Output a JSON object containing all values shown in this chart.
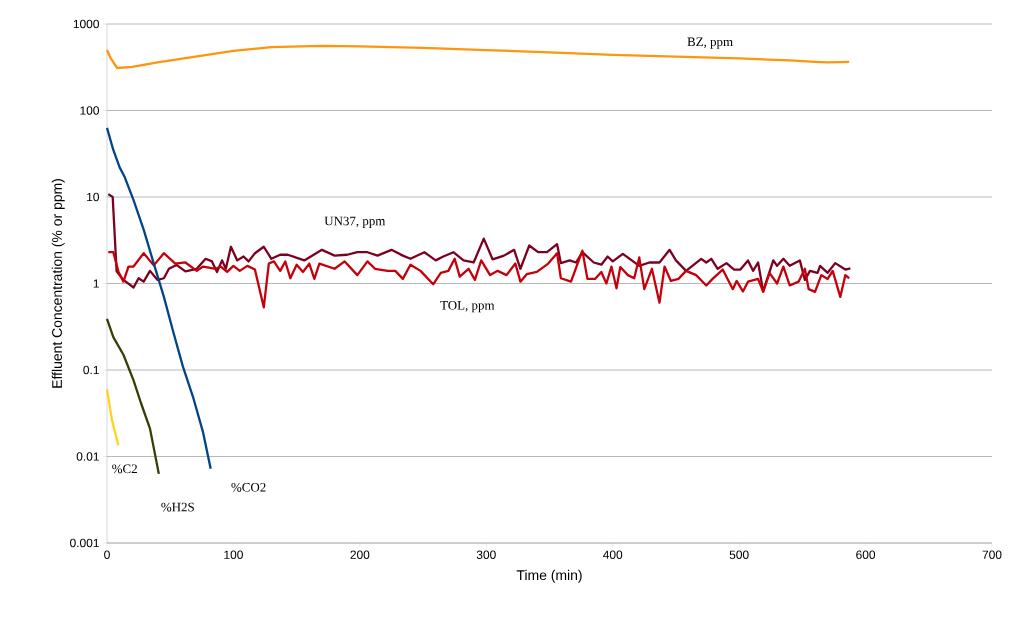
{
  "chart_data": {
    "type": "line",
    "xlabel": "Time (min)",
    "ylabel": "Effluent Concentration (% or ppm)",
    "xlim": [
      0,
      700
    ],
    "xticks": [
      0,
      100,
      200,
      300,
      400,
      500,
      600,
      700
    ],
    "ylim": [
      0.001,
      1000
    ],
    "yticks": [
      0.001,
      0.01,
      0.1,
      1,
      10,
      100,
      1000
    ],
    "log": "y",
    "grid": "y",
    "line_style": "solid",
    "series": [
      {
        "name": "BZ, ppm",
        "color": "#ff950e",
        "x": [
          0,
          3,
          8,
          20,
          40,
          70,
          100,
          130,
          170,
          200,
          250,
          300,
          350,
          400,
          450,
          500,
          540,
          560,
          570,
          587
        ],
        "values": [
          500,
          400,
          310,
          320,
          360,
          420,
          490,
          540,
          560,
          550,
          530,
          500,
          470,
          440,
          420,
          400,
          380,
          365,
          360,
          365
        ]
      },
      {
        "name": "UN37, ppm",
        "color": "#7e0021",
        "x": [
          1,
          4.5,
          7.6,
          13,
          21,
          25,
          29,
          34,
          40,
          45,
          49,
          55,
          62,
          71,
          78,
          83,
          87,
          91,
          94,
          98,
          103,
          108,
          112,
          117,
          124,
          130,
          137,
          143,
          156,
          170,
          180,
          190,
          198,
          206,
          214,
          225,
          234,
          240,
          251,
          260,
          266,
          274,
          282,
          290,
          298,
          305,
          314,
          322,
          327,
          334,
          341,
          348,
          356,
          359,
          366,
          371,
          376,
          385,
          391,
          396,
          400,
          408,
          421,
          429,
          437,
          445,
          450,
          458,
          470,
          474,
          478,
          483,
          490,
          496,
          501,
          507,
          511,
          515,
          519,
          527,
          530,
          535,
          540,
          548,
          552,
          556,
          562,
          564,
          570,
          576,
          584,
          588
        ],
        "values": [
          10.8,
          10,
          1.38,
          1.1,
          0.9,
          1.15,
          1.05,
          1.4,
          1.1,
          1.15,
          1.48,
          1.64,
          1.38,
          1.48,
          1.93,
          1.8,
          1.36,
          1.85,
          1.48,
          2.66,
          1.85,
          2.05,
          1.8,
          2.24,
          2.66,
          1.93,
          2.15,
          2.15,
          1.85,
          2.45,
          2.1,
          2.15,
          2.3,
          2.3,
          2.1,
          2.45,
          2.1,
          1.93,
          2.3,
          1.85,
          2.05,
          2.3,
          1.85,
          1.75,
          3.3,
          1.9,
          2.1,
          2.45,
          1.48,
          2.75,
          2.3,
          2.3,
          2.85,
          1.72,
          1.85,
          1.75,
          2.3,
          1.75,
          1.65,
          2.05,
          1.8,
          2.2,
          1.6,
          1.75,
          1.75,
          2.45,
          1.85,
          1.4,
          1.93,
          1.75,
          1.93,
          1.48,
          1.72,
          1.45,
          1.45,
          1.85,
          1.4,
          1.75,
          0.81,
          1.85,
          1.6,
          1.93,
          1.6,
          1.85,
          1.1,
          1.4,
          1.33,
          1.6,
          1.33,
          1.72,
          1.45,
          1.5
        ]
      },
      {
        "name": "TOL, ppm",
        "color": "#c5000b",
        "x": [
          1,
          5,
          9,
          13,
          17,
          21,
          29,
          37,
          45,
          54,
          62,
          71,
          76,
          86,
          90,
          95,
          100,
          105,
          111,
          117,
          124,
          128,
          132,
          137,
          141,
          145,
          150,
          155,
          160,
          164,
          168,
          180,
          188,
          198,
          206,
          212,
          222,
          228,
          234,
          240,
          248,
          258,
          264,
          270,
          275,
          279,
          286,
          291,
          296,
          303,
          309,
          316,
          323,
          327,
          332,
          340,
          349,
          356,
          359,
          367,
          376,
          380,
          386,
          391,
          395,
          399,
          403,
          406,
          412,
          417,
          421,
          425,
          431,
          437,
          441,
          446,
          452,
          458,
          466,
          474,
          479,
          487,
          495,
          498,
          503,
          507,
          515,
          519,
          524,
          530,
          535,
          540,
          547,
          552,
          555,
          560,
          565,
          570,
          574,
          580,
          584,
          587
        ],
        "values": [
          2.3,
          2.3,
          1.38,
          1.05,
          1.57,
          1.57,
          2.24,
          1.62,
          2.24,
          1.7,
          1.75,
          1.4,
          1.57,
          1.48,
          1.57,
          1.36,
          1.6,
          1.4,
          1.6,
          1.45,
          0.53,
          1.7,
          1.8,
          1.4,
          1.8,
          1.15,
          1.65,
          1.36,
          1.7,
          1.13,
          1.7,
          1.48,
          1.8,
          1.25,
          1.8,
          1.48,
          1.4,
          1.4,
          1.13,
          1.65,
          1.4,
          0.98,
          1.33,
          1.4,
          1.93,
          1.2,
          1.48,
          1.1,
          1.85,
          1.25,
          1.4,
          1.25,
          1.7,
          1.05,
          1.28,
          1.36,
          1.7,
          2.24,
          1.15,
          1.05,
          2.4,
          1.13,
          1.13,
          1.36,
          1.0,
          1.57,
          0.88,
          1.55,
          1.25,
          1.15,
          2.0,
          0.86,
          1.48,
          0.6,
          1.57,
          1.07,
          1.13,
          1.4,
          1.25,
          0.95,
          1.13,
          1.45,
          0.86,
          1.07,
          0.81,
          1.05,
          1.13,
          0.8,
          1.33,
          1.0,
          1.57,
          0.95,
          1.05,
          1.48,
          0.86,
          0.8,
          1.25,
          1.13,
          1.4,
          0.7,
          1.25,
          1.15
        ]
      },
      {
        "name": "%CO2",
        "color": "#004586",
        "x": [
          0,
          5,
          10,
          14,
          21,
          29,
          37,
          45,
          52,
          60,
          68,
          76,
          82
        ],
        "values": [
          63,
          35,
          22,
          17,
          9.2,
          4.2,
          1.7,
          0.7,
          0.29,
          0.11,
          0.049,
          0.019,
          0.0072
        ]
      },
      {
        "name": "%H2S",
        "color": "#314004",
        "x": [
          0,
          5,
          13,
          21,
          27,
          34,
          41
        ],
        "values": [
          0.39,
          0.24,
          0.15,
          0.076,
          0.041,
          0.021,
          0.0063
        ]
      },
      {
        "name": "%C2",
        "color": "#ffd320",
        "x": [
          0,
          4,
          9
        ],
        "values": [
          0.06,
          0.026,
          0.0135
        ]
      }
    ]
  }
}
